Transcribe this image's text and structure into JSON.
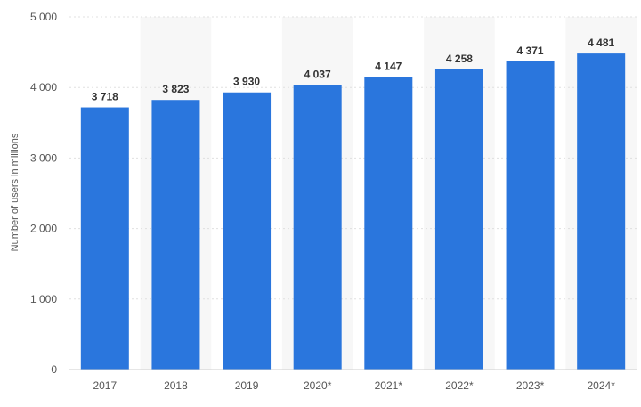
{
  "chart_data": {
    "type": "bar",
    "categories": [
      "2017",
      "2018",
      "2019",
      "2020*",
      "2021*",
      "2022*",
      "2023*",
      "2024*"
    ],
    "values": [
      3718,
      3823,
      3930,
      4037,
      4147,
      4258,
      4371,
      4481
    ],
    "value_labels": [
      "3 718",
      "3 823",
      "3 930",
      "4 037",
      "4 147",
      "4 258",
      "4 371",
      "4 481"
    ],
    "title": "",
    "xlabel": "",
    "ylabel": "Number of users in millions",
    "ylim": [
      0,
      5000
    ],
    "yticks": [
      0,
      1000,
      2000,
      3000,
      4000,
      5000
    ],
    "ytick_labels": [
      "0",
      "1 000",
      "2 000",
      "3 000",
      "4 000",
      "5 000"
    ],
    "grid": true,
    "bar_color": "#2a76dd",
    "band_color": "#f7f7f7",
    "grid_color": "#e0e0e0"
  }
}
